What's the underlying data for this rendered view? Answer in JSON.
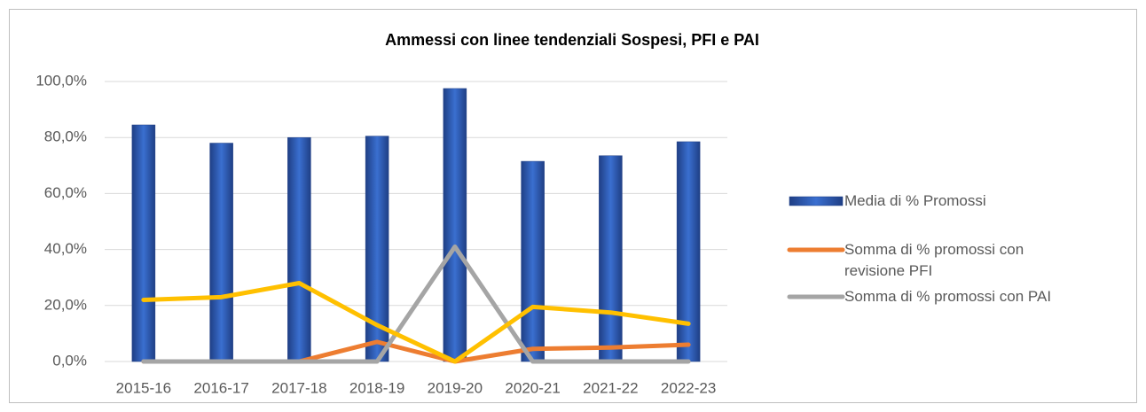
{
  "chart_data": {
    "type": "bar",
    "title": "Ammessi con linee tendenziali Sospesi, PFI e PAI",
    "categories": [
      "2015-16",
      "2016-17",
      "2017-18",
      "2018-19",
      "2019-20",
      "2020-21",
      "2021-22",
      "2022-23"
    ],
    "series": [
      {
        "name": "Media di % Promossi",
        "type": "bar",
        "color": "#2f5fbd",
        "values": [
          84.5,
          78,
          80,
          80.5,
          97.5,
          71.5,
          73.5,
          78.5
        ]
      },
      {
        "name": "Somma di % promossi con revisione PFI",
        "type": "line",
        "color": "#ed7d31",
        "values": [
          0,
          0,
          0,
          7,
          0,
          4.5,
          5,
          6
        ]
      },
      {
        "name": "Somma di % promossi con PAI",
        "type": "line",
        "color": "#a5a5a5",
        "values": [
          0,
          0,
          0,
          0,
          41,
          0,
          0,
          0
        ]
      },
      {
        "type": "line",
        "color": "#ffc000",
        "values": [
          22,
          23,
          28,
          13,
          0,
          19.5,
          17.5,
          13.5
        ]
      }
    ],
    "ylim": [
      0,
      100
    ],
    "yticks": [
      {
        "value": 0,
        "label": "0,0%"
      },
      {
        "value": 20,
        "label": "20,0%"
      },
      {
        "value": 40,
        "label": "40,0%"
      },
      {
        "value": 60,
        "label": "60,0%"
      },
      {
        "value": 80,
        "label": "80,0%"
      },
      {
        "value": 100,
        "label": "100,0%"
      }
    ],
    "grid": true,
    "legend": "right"
  }
}
